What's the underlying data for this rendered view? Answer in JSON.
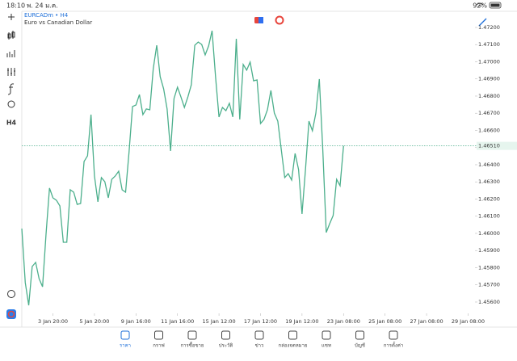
{
  "status_bar": {
    "time": "18:10",
    "date": "พ. 24 ม.ค.",
    "battery": "92%"
  },
  "symbol": {
    "name": "EURCADm • H4",
    "description": "Euro vs Canadian Dollar"
  },
  "toolbar": {
    "timeframe": "H4"
  },
  "chart_data": {
    "type": "line",
    "x": [
      0,
      1,
      2,
      3,
      4,
      5,
      6,
      7,
      8,
      9,
      10,
      11,
      12,
      13,
      14,
      15,
      16,
      17,
      18,
      19,
      20,
      21,
      22,
      23,
      24,
      25,
      26,
      27,
      28,
      29,
      30,
      31,
      32,
      33,
      34,
      35,
      36,
      37,
      38,
      39,
      40,
      41,
      42,
      43,
      44,
      45,
      46,
      47,
      48,
      49,
      50,
      51,
      52,
      53,
      54,
      55,
      56,
      57,
      58,
      59,
      60,
      61,
      62,
      63,
      64,
      65,
      66,
      67,
      68,
      69,
      70,
      71,
      72,
      73,
      74,
      75,
      76,
      77,
      78,
      79,
      80,
      81,
      82,
      83,
      84,
      85,
      86,
      87,
      88,
      89,
      90,
      91,
      92,
      93
    ],
    "series": [
      {
        "color": "#4caf8c",
        "values": [
          1.46028,
          1.45713,
          1.45581,
          1.45807,
          1.45831,
          1.45736,
          1.45689,
          1.45995,
          1.46264,
          1.46207,
          1.46193,
          1.4616,
          1.45948,
          1.45948,
          1.46254,
          1.4624,
          1.46169,
          1.46174,
          1.46419,
          1.46452,
          1.46692,
          1.46334,
          1.46184,
          1.46325,
          1.46301,
          1.46207,
          1.46315,
          1.46334,
          1.46362,
          1.46254,
          1.4624,
          1.46475,
          1.46739,
          1.46748,
          1.46809,
          1.46692,
          1.46725,
          1.4672,
          1.4696,
          1.47096,
          1.46913,
          1.46842,
          1.46725,
          1.4648,
          1.46786,
          1.46852,
          1.46795,
          1.46734,
          1.46795,
          1.46866,
          1.47096,
          1.47115,
          1.47101,
          1.4704,
          1.47092,
          1.47181,
          1.46913,
          1.46678,
          1.46734,
          1.46715,
          1.46758,
          1.46678,
          1.47134,
          1.46664,
          1.46984,
          1.46951,
          1.46998,
          1.46889,
          1.46894,
          1.4664,
          1.46664,
          1.4672,
          1.46833,
          1.46701,
          1.46654,
          1.46489,
          1.46325,
          1.46348,
          1.46311,
          1.46466,
          1.46372,
          1.46113,
          1.46372,
          1.46654,
          1.46598,
          1.46701,
          1.46899,
          1.46489,
          1.46005,
          1.46057,
          1.46104,
          1.46315,
          1.46278,
          1.4651
        ]
      }
    ],
    "xlim": [
      0,
      131
    ],
    "xticks": [
      {
        "value": 9,
        "label": "3 Jan 20:00"
      },
      {
        "value": 21,
        "label": "5 Jan 20:00"
      },
      {
        "value": 33,
        "label": "9 Jan 16:00"
      },
      {
        "value": 45,
        "label": "11 Jan 16:00"
      },
      {
        "value": 57,
        "label": "15 Jan 12:00"
      },
      {
        "value": 69,
        "label": "17 Jan 12:00"
      },
      {
        "value": 81,
        "label": "19 Jan 12:00"
      },
      {
        "value": 93,
        "label": "23 Jan 08:00"
      },
      {
        "value": 105,
        "label": "25 Jan 08:00"
      },
      {
        "value": 117,
        "label": "27 Jan 08:00"
      },
      {
        "value": 129,
        "label": "29 Jan 08:00"
      }
    ],
    "ylim": [
      1.45534,
      1.47294
    ],
    "yticks": [
      {
        "value": 1.456,
        "label": "1.45600"
      },
      {
        "value": 1.457,
        "label": "1.45700"
      },
      {
        "value": 1.458,
        "label": "1.45800"
      },
      {
        "value": 1.459,
        "label": "1.45900"
      },
      {
        "value": 1.46,
        "label": "1.46000"
      },
      {
        "value": 1.461,
        "label": "1.46100"
      },
      {
        "value": 1.462,
        "label": "1.46200"
      },
      {
        "value": 1.463,
        "label": "1.46300"
      },
      {
        "value": 1.464,
        "label": "1.46400"
      },
      {
        "value": 1.465,
        "label": "1.46500"
      },
      {
        "value": 1.466,
        "label": "1.46600"
      },
      {
        "value": 1.467,
        "label": "1.46700"
      },
      {
        "value": 1.468,
        "label": "1.46800"
      },
      {
        "value": 1.469,
        "label": "1.46900"
      },
      {
        "value": 1.47,
        "label": "1.47000"
      },
      {
        "value": 1.471,
        "label": "1.47100"
      },
      {
        "value": 1.472,
        "label": "1.47200"
      }
    ],
    "price_line": {
      "value": 1.4651,
      "label": "1.46510"
    }
  },
  "bottom_nav": {
    "items": [
      "ราคา",
      "กราฟ",
      "การซื้อขาย",
      "ประวัติ",
      "ข่าว",
      "กล่องจดหมาย",
      "แชท",
      "บัญชี",
      "การตั้งค่า"
    ],
    "active": 0
  }
}
